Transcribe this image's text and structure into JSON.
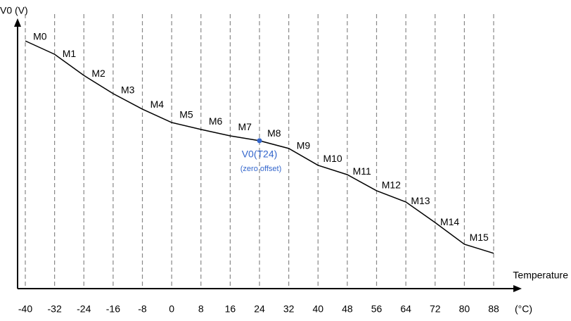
{
  "chart_data": {
    "type": "line",
    "y_label": "V0 (V)",
    "x_label": "Temperature",
    "x_unit": "(°C)",
    "x": [
      -40,
      -32,
      -24,
      -16,
      -8,
      0,
      8,
      16,
      24,
      32,
      40,
      48,
      56,
      64,
      72,
      80,
      88
    ],
    "values": [
      92.6,
      87.6,
      79.7,
      72.9,
      67.1,
      62.1,
      59.5,
      57.1,
      55.3,
      52.4,
      46.1,
      42.6,
      36.6,
      32.4,
      24.7,
      16.6,
      13.2
    ],
    "segment_labels": [
      "M0",
      "M1",
      "M2",
      "M3",
      "M4",
      "M5",
      "M6",
      "M7",
      "M8",
      "M9",
      "M10",
      "M11",
      "M12",
      "M13",
      "M14",
      "M15"
    ],
    "color": "#000000",
    "xlim": [
      -40,
      88
    ],
    "xticks": [
      -40,
      -32,
      -24,
      -16,
      -8,
      0,
      8,
      16,
      24,
      32,
      40,
      48,
      56,
      64,
      72,
      80,
      88
    ],
    "ylim": [
      0,
      100
    ],
    "grid": true,
    "annotation": {
      "text": "V0(T24)",
      "subtext": "(zero offset)",
      "x": 24,
      "color": "#3366cc"
    }
  }
}
